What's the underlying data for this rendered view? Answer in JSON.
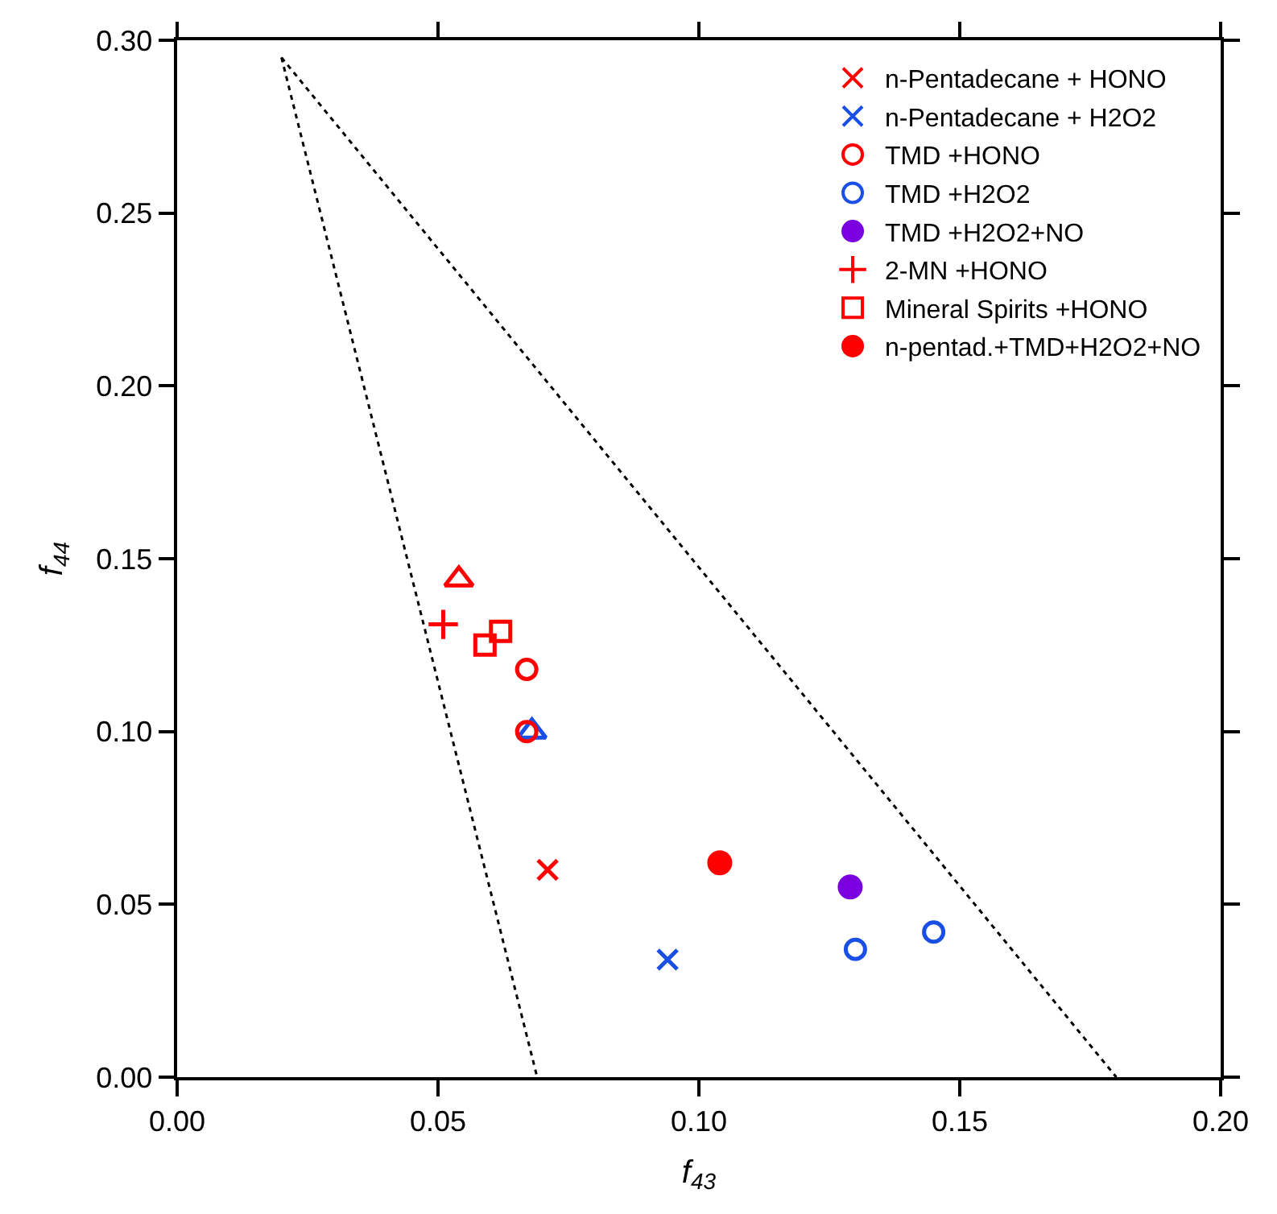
{
  "chart_data": {
    "type": "scatter",
    "xlabel": "f$_{43}$",
    "ylabel": "f$_{44}$",
    "xlim": [
      0,
      0.2
    ],
    "xticks": [
      {
        "value": 0,
        "label": "0.00"
      },
      {
        "value": 0.05,
        "label": "0.05"
      },
      {
        "value": 0.1,
        "label": "0.10"
      },
      {
        "value": 0.15,
        "label": "0.15"
      },
      {
        "value": 0.2,
        "label": "0.20"
      }
    ],
    "ylim": [
      0,
      0.3
    ],
    "yticks": [
      {
        "value": 0,
        "label": "0.00"
      },
      {
        "value": 0.05,
        "label": "0.05"
      },
      {
        "value": 0.1,
        "label": "0.10"
      },
      {
        "value": 0.15,
        "label": "0.15"
      },
      {
        "value": 0.2,
        "label": "0.20"
      },
      {
        "value": 0.25,
        "label": "0.25"
      },
      {
        "value": 0.3,
        "label": "0.30"
      }
    ],
    "legend": "top right",
    "series": [
      {
        "color": "#ff0000",
        "marker": "triangle",
        "x": [
          0.054
        ],
        "values": [
          0.144
        ]
      },
      {
        "color": "#1a4fe6",
        "marker": "triangle",
        "x": [
          0.068
        ],
        "values": [
          0.1
        ]
      },
      {
        "name": "n-Pentadecane + HONO",
        "color": "#ff0000",
        "marker": "cross",
        "x": [
          0.071
        ],
        "values": [
          0.06
        ]
      },
      {
        "name": "n-Pentadecane + H2O2",
        "color": "#1a4fe6",
        "marker": "cross",
        "x": [
          0.094
        ],
        "values": [
          0.034
        ]
      },
      {
        "name": "TMD +HONO",
        "color": "#ff0000",
        "marker": "circle",
        "x": [
          0.067,
          0.067
        ],
        "values": [
          0.118,
          0.1
        ]
      },
      {
        "name": "TMD +H2O2",
        "color": "#1a4fe6",
        "marker": "circle",
        "x": [
          0.13,
          0.145
        ],
        "values": [
          0.037,
          0.042
        ]
      },
      {
        "name": "TMD +H2O2+NO",
        "color": "#7a00e0",
        "marker": "filled circle",
        "x": [
          0.129
        ],
        "values": [
          0.055
        ]
      },
      {
        "name": "2-MN +HONO",
        "color": "#ff0000",
        "marker": "plus",
        "x": [
          0.051
        ],
        "values": [
          0.131
        ]
      },
      {
        "name": "Mineral Spirits +HONO",
        "color": "#ff0000",
        "marker": "square",
        "x": [
          0.059,
          0.062
        ],
        "values": [
          0.125,
          0.129
        ]
      },
      {
        "name": "n-pentad.+TMD+H2O2+NO",
        "color": "#ff0000",
        "marker": "filled circle",
        "x": [
          0.104
        ],
        "values": [
          0.062
        ]
      },
      {
        "type": "line",
        "color": "#000000",
        "line_style": "dotted",
        "marker": "none",
        "x": [
          0.02,
          0.069
        ],
        "values": [
          0.295,
          0
        ]
      },
      {
        "type": "line",
        "color": "#000000",
        "line_style": "dotted",
        "marker": "none",
        "x": [
          0.02,
          0.18
        ],
        "values": [
          0.295,
          0
        ]
      }
    ]
  }
}
